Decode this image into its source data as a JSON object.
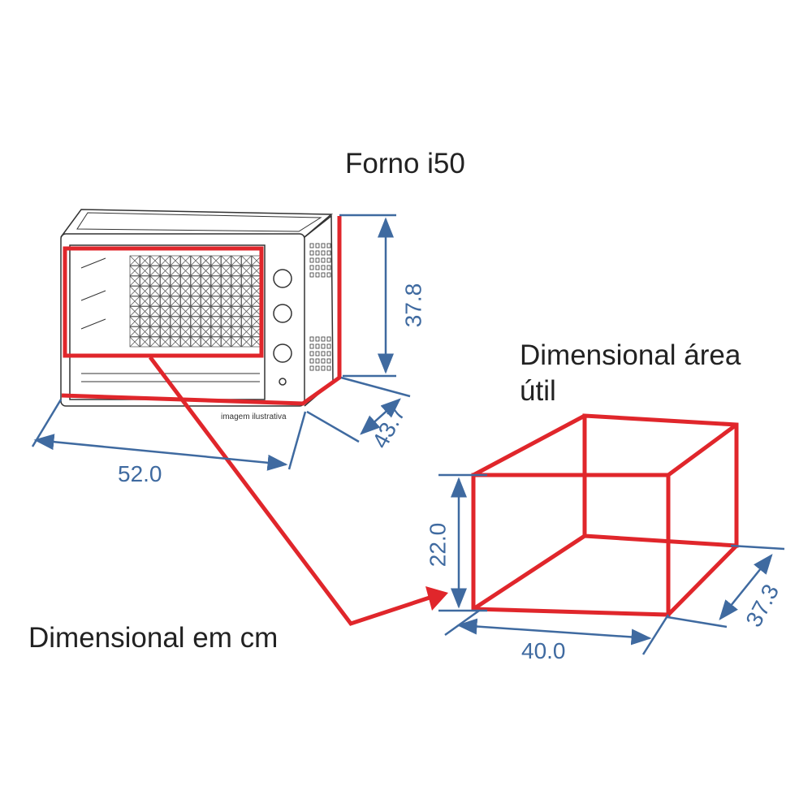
{
  "title": "Forno i50",
  "subtitle": "Dimensional área útil",
  "subtitle_line1": "Dimensional área",
  "subtitle_line2": "útil",
  "footer": "Dimensional em cm",
  "image_note": "imagem ilustrativa",
  "oven_dimensions": {
    "height": "37.8",
    "depth": "43.7",
    "width": "52.0"
  },
  "cavity_dimensions": {
    "height": "22.0",
    "width": "40.0",
    "depth": "37.3"
  },
  "colors": {
    "highlight": "#e0262b",
    "dimension": "#3f6aa0",
    "drawing": "#333333"
  }
}
